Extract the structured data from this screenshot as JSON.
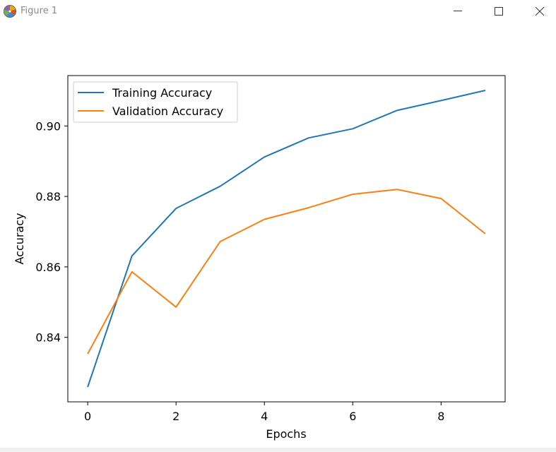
{
  "window": {
    "title": "Figure 1",
    "icons": {
      "app": "matplotlib-icon",
      "minimize": "minimize-icon",
      "maximize": "maximize-icon",
      "close": "close-icon"
    }
  },
  "chart_data": {
    "type": "line",
    "title": "",
    "xlabel": "Epochs",
    "ylabel": "Accuracy",
    "x": [
      0,
      1,
      2,
      3,
      4,
      5,
      6,
      7,
      8,
      9
    ],
    "xlim": [
      -0.45,
      9.45
    ],
    "ylim": [
      0.8217,
      0.9143
    ],
    "xticks": [
      0,
      2,
      4,
      6,
      8
    ],
    "yticks": [
      0.84,
      0.86,
      0.88,
      0.9
    ],
    "grid": false,
    "legend_position": "upper-left",
    "series": [
      {
        "name": "Training Accuracy",
        "color": "#1f77b4",
        "values": [
          0.8259,
          0.8631,
          0.8766,
          0.8829,
          0.8912,
          0.8966,
          0.8992,
          0.9044,
          0.9072,
          0.9101
        ]
      },
      {
        "name": "Validation Accuracy",
        "color": "#ff7f0e",
        "values": [
          0.8353,
          0.8586,
          0.8486,
          0.8672,
          0.8735,
          0.8768,
          0.8806,
          0.882,
          0.8794,
          0.8694
        ]
      }
    ]
  }
}
